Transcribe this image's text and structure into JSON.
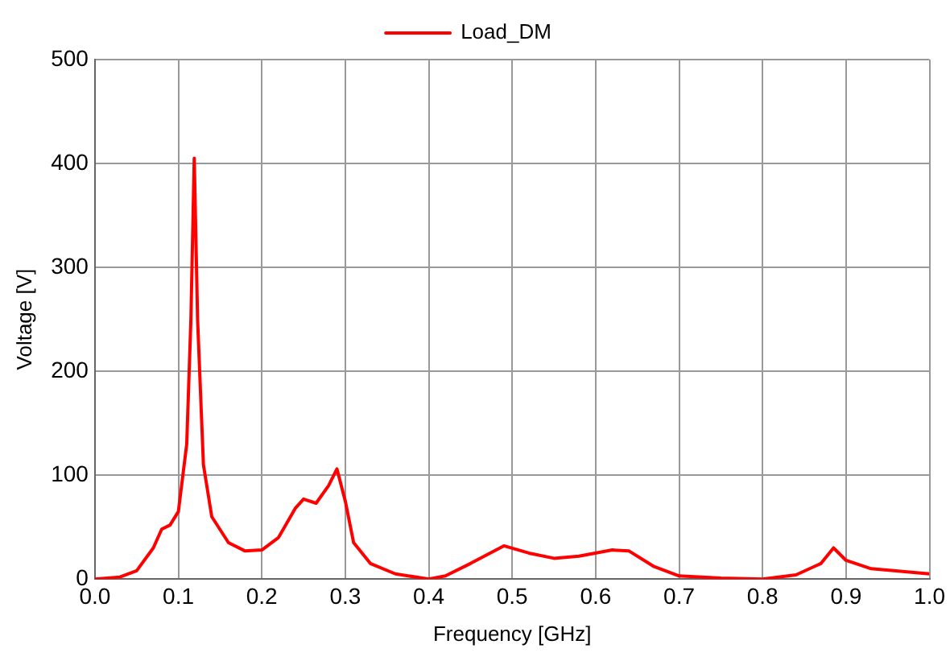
{
  "chart_data": {
    "type": "line",
    "xlabel": "Frequency [GHz]",
    "ylabel": "Voltage [V]",
    "xlim": [
      0,
      1
    ],
    "xticks": [
      {
        "value": 0,
        "label": "0.0"
      },
      {
        "value": 0.1,
        "label": "0.1"
      },
      {
        "value": 0.2,
        "label": "0.2"
      },
      {
        "value": 0.3,
        "label": "0.3"
      },
      {
        "value": 0.4,
        "label": "0.4"
      },
      {
        "value": 0.5,
        "label": "0.5"
      },
      {
        "value": 0.6,
        "label": "0.6"
      },
      {
        "value": 0.7,
        "label": "0.7"
      },
      {
        "value": 0.8,
        "label": "0.8"
      },
      {
        "value": 0.9,
        "label": "0.9"
      },
      {
        "value": 1,
        "label": "1.0"
      }
    ],
    "ylim": [
      0,
      500
    ],
    "yticks": [
      0,
      100,
      200,
      300,
      400,
      500
    ],
    "grid": true,
    "legend": "top",
    "marker": "none",
    "line_style": "solid",
    "series": [
      {
        "name": "Load_DM",
        "color": "#ff0000",
        "x": [
          0,
          0.03,
          0.05,
          0.07,
          0.08,
          0.09,
          0.1,
          0.11,
          0.115,
          0.119,
          0.123,
          0.13,
          0.14,
          0.16,
          0.18,
          0.2,
          0.22,
          0.24,
          0.25,
          0.265,
          0.28,
          0.29,
          0.3,
          0.31,
          0.33,
          0.36,
          0.4,
          0.42,
          0.45,
          0.49,
          0.52,
          0.55,
          0.58,
          0.62,
          0.64,
          0.67,
          0.7,
          0.75,
          0.8,
          0.84,
          0.87,
          0.885,
          0.9,
          0.93,
          1.0
        ],
        "values": [
          0,
          2,
          8,
          30,
          48,
          52,
          65,
          130,
          250,
          405,
          250,
          110,
          60,
          35,
          27,
          28,
          40,
          68,
          77,
          73,
          90,
          106,
          75,
          35,
          15,
          5,
          0,
          3,
          15,
          32,
          25,
          20,
          22,
          28,
          27,
          12,
          3,
          1,
          0,
          4,
          15,
          30,
          18,
          10,
          5
        ]
      }
    ]
  }
}
